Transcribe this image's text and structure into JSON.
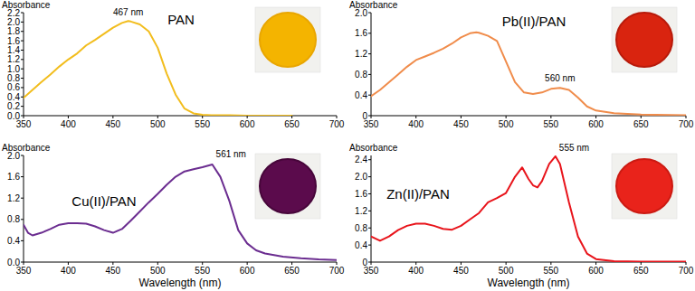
{
  "chart_data": [
    {
      "type": "line",
      "title": "PAN",
      "y_label": "Absorbance",
      "x": [
        350,
        360,
        370,
        380,
        390,
        400,
        410,
        420,
        430,
        440,
        450,
        460,
        467,
        470,
        480,
        490,
        500,
        510,
        520,
        530,
        540,
        550,
        560,
        580,
        600,
        650
      ],
      "series": [
        {
          "color": "#f2bd1d",
          "values": [
            0.38,
            0.55,
            0.72,
            0.88,
            1.05,
            1.2,
            1.33,
            1.5,
            1.62,
            1.75,
            1.88,
            1.98,
            2.02,
            2.01,
            1.95,
            1.8,
            1.45,
            0.9,
            0.45,
            0.15,
            0.05,
            0.02,
            0.01,
            0.01,
            0.0,
            0.0
          ]
        }
      ],
      "xlim": [
        350,
        700
      ],
      "xticks": [
        350,
        400,
        450,
        500,
        550,
        600,
        650,
        700
      ],
      "ylim": [
        0,
        2.2
      ],
      "yticks": [
        {
          "value": 0,
          "label": "0.0"
        },
        0.2,
        0.4,
        0.6,
        0.8,
        {
          "value": 1,
          "label": "1.0"
        },
        1.2,
        1.4,
        1.6,
        1.8,
        {
          "value": 2,
          "label": "2.0"
        },
        2.2
      ],
      "annotations": [
        {
          "text": "467 nm",
          "x": 467,
          "y": 2.02
        }
      ]
    },
    {
      "type": "line",
      "title": "Pb(II)/PAN",
      "y_label": "Absorbance",
      "x": [
        350,
        360,
        370,
        380,
        390,
        400,
        410,
        420,
        430,
        440,
        450,
        460,
        467,
        470,
        480,
        490,
        500,
        510,
        520,
        530,
        540,
        550,
        560,
        570,
        580,
        590,
        600,
        620,
        650,
        700
      ],
      "series": [
        {
          "color": "#f08c4b",
          "values": [
            0.38,
            0.5,
            0.65,
            0.8,
            0.95,
            1.08,
            1.15,
            1.22,
            1.3,
            1.4,
            1.52,
            1.6,
            1.62,
            1.61,
            1.55,
            1.45,
            1.05,
            0.65,
            0.45,
            0.42,
            0.45,
            0.52,
            0.54,
            0.5,
            0.35,
            0.18,
            0.1,
            0.05,
            0.02,
            0.01
          ]
        }
      ],
      "xlim": [
        350,
        700
      ],
      "xticks": [
        350,
        400,
        450,
        500,
        550,
        600,
        650,
        700
      ],
      "ylim": [
        0,
        2
      ],
      "yticks": [
        0,
        0.4,
        0.8,
        1.2,
        1.6,
        {
          "value": 2,
          "label": "2.0"
        }
      ],
      "annotations": [
        {
          "text": "560 nm",
          "x": 560,
          "y": 0.54
        }
      ]
    },
    {
      "type": "line",
      "title": "Cu(II)/PAN",
      "y_label": "Absorbance",
      "x_label": "Wavelength (nm)",
      "x": [
        350,
        355,
        360,
        370,
        380,
        390,
        400,
        410,
        420,
        430,
        440,
        450,
        460,
        470,
        480,
        490,
        500,
        510,
        520,
        530,
        540,
        550,
        561,
        570,
        580,
        590,
        600,
        610,
        620,
        640,
        660,
        680,
        700
      ],
      "series": [
        {
          "color": "#6b2d90",
          "values": [
            0.7,
            0.55,
            0.5,
            0.55,
            0.62,
            0.7,
            0.73,
            0.73,
            0.72,
            0.67,
            0.6,
            0.55,
            0.62,
            0.78,
            0.95,
            1.12,
            1.28,
            1.45,
            1.6,
            1.7,
            1.74,
            1.78,
            1.83,
            1.6,
            1.15,
            0.6,
            0.35,
            0.22,
            0.16,
            0.1,
            0.07,
            0.05,
            0.04
          ]
        }
      ],
      "xlim": [
        350,
        700
      ],
      "xticks": [
        350,
        400,
        450,
        500,
        550,
        600,
        650,
        700
      ],
      "ylim": [
        0,
        2
      ],
      "yticks": [
        {
          "value": 0,
          "label": "0.0"
        },
        0.4,
        0.8,
        1.2,
        1.6,
        {
          "value": 2,
          "label": "2.0"
        }
      ],
      "annotations": [
        {
          "text": "561 nm",
          "x": 561,
          "y": 1.83
        }
      ]
    },
    {
      "type": "line",
      "title": "Zn(II)/PAN",
      "y_label": "Absorbance",
      "x_label": "Wavelength (nm)",
      "x": [
        350,
        360,
        370,
        380,
        390,
        400,
        410,
        420,
        430,
        440,
        450,
        460,
        470,
        480,
        490,
        500,
        510,
        518,
        525,
        530,
        535,
        540,
        548,
        555,
        560,
        570,
        580,
        590,
        600,
        620,
        650,
        700
      ],
      "series": [
        {
          "color": "#e8141b",
          "values": [
            0.6,
            0.5,
            0.6,
            0.75,
            0.85,
            0.9,
            0.9,
            0.85,
            0.78,
            0.76,
            0.85,
            1.0,
            1.15,
            1.4,
            1.5,
            1.62,
            2.0,
            2.22,
            1.95,
            1.8,
            1.75,
            1.9,
            2.3,
            2.48,
            2.3,
            1.4,
            0.6,
            0.2,
            0.07,
            0.02,
            0.01,
            0.01
          ]
        }
      ],
      "xlim": [
        350,
        700
      ],
      "xticks": [
        350,
        400,
        450,
        500,
        550,
        600,
        650,
        700
      ],
      "ylim": [
        0,
        2.5
      ],
      "yticks": [
        0,
        0.4,
        0.8,
        1.2,
        1.6,
        {
          "value": 2,
          "label": "2.0"
        },
        2.4
      ],
      "annotations": [
        {
          "text": "555 nm",
          "x": 555,
          "y": 2.48
        }
      ]
    }
  ]
}
